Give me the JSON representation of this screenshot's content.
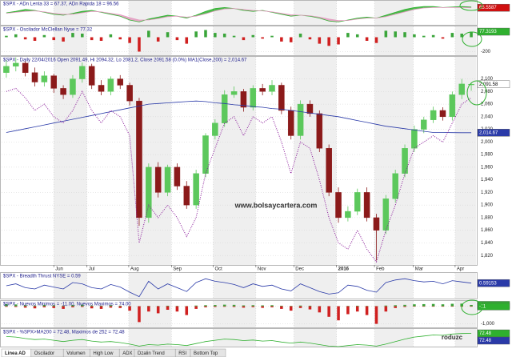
{
  "chart_data": [
    {
      "type": "area",
      "title": "$SPX - ADn Lenta 33 = 67.37, ADn Rapida 18 = 96.56",
      "ylim": [
        30,
        80
      ],
      "series": [
        {
          "color": "#2fb02f",
          "values": [
            55,
            58,
            62,
            60,
            56,
            52,
            50,
            54,
            58,
            60,
            56,
            52,
            48,
            40,
            36,
            42,
            46,
            50,
            48,
            44,
            50,
            58,
            64,
            66,
            64,
            60,
            58,
            60,
            56,
            52,
            48,
            50,
            48,
            44,
            38,
            36,
            40,
            44,
            46,
            44,
            50,
            56,
            62,
            66,
            68,
            68,
            66,
            67,
            68,
            67
          ]
        },
        {
          "color": "#e39bc0",
          "values": [
            54,
            56,
            58,
            59,
            57,
            54,
            52,
            52,
            55,
            58,
            57,
            54,
            51,
            45,
            40,
            40,
            43,
            47,
            48,
            46,
            48,
            53,
            59,
            63,
            64,
            62,
            60,
            59,
            57,
            54,
            51,
            50,
            49,
            46,
            42,
            39,
            39,
            42,
            44,
            44,
            47,
            52,
            57,
            62,
            65,
            66,
            66,
            66,
            66,
            65.5587
          ]
        }
      ],
      "markers": [
        {
          "value": 65.5587,
          "color": "#d01010"
        }
      ]
    },
    {
      "type": "bar",
      "title": "$SPX - Oscilador McClellan Nyse = 77.32",
      "ylim": [
        -250,
        150
      ],
      "yticks": [
        -200
      ],
      "series": [
        {
          "color": "#3aa53a",
          "negative_color": "#d02020",
          "values": [
            20,
            40,
            -30,
            -50,
            30,
            -40,
            -60,
            60,
            50,
            -40,
            -50,
            40,
            -30,
            -80,
            -200,
            90,
            -60,
            70,
            -40,
            -90,
            80,
            100,
            60,
            50,
            20,
            -40,
            30,
            -20,
            20,
            -60,
            -70,
            50,
            -30,
            -90,
            -120,
            -100,
            60,
            40,
            -50,
            -80,
            90,
            80,
            70,
            40,
            20,
            30,
            -20,
            60,
            50,
            77.32
          ]
        }
      ],
      "markers": [
        {
          "value": 77.3193,
          "color": "#2fb02f"
        }
      ]
    },
    {
      "type": "candlestick",
      "title": "$SPX - Daily 22/04/2016 Open 2091.49, Hi 2094.32, Lo 2081.2, Close 2091.58 (0.0%) MA1(Close,200) = 2,014.67",
      "annotation": "www.bolsaycartera.com",
      "xlim": [
        -0.5,
        49.5
      ],
      "ylim": [
        1805,
        2135
      ],
      "xticks": [
        {
          "value": 5,
          "label": "Jun"
        },
        {
          "value": 8.5,
          "label": "Jul"
        },
        {
          "value": 12.9,
          "label": "Aug"
        },
        {
          "value": 17.4,
          "label": "Sep"
        },
        {
          "value": 21.8,
          "label": "Oct"
        },
        {
          "value": 26.3,
          "label": "Nov"
        },
        {
          "value": 30.3,
          "label": "Dec"
        },
        {
          "value": 34.8,
          "label": "2016"
        },
        {
          "value": 38.8,
          "label": "Feb"
        },
        {
          "value": 42.9,
          "label": "Mar"
        },
        {
          "value": 47.3,
          "label": "Apr"
        }
      ],
      "yticks": [
        {
          "value": 1820,
          "label": "1,820"
        },
        {
          "value": 1840,
          "label": "1,840"
        },
        {
          "value": 1860,
          "label": "1,860"
        },
        {
          "value": 1880,
          "label": "1,880"
        },
        {
          "value": 1900,
          "label": "1,900"
        },
        {
          "value": 1920,
          "label": "1,920"
        },
        {
          "value": 1940,
          "label": "1,940"
        },
        {
          "value": 1960,
          "label": "1,960"
        },
        {
          "value": 1980,
          "label": "1,980"
        },
        {
          "value": 2000,
          "label": "2,000"
        },
        {
          "value": 2020,
          "label": "2,020"
        },
        {
          "value": 2040,
          "label": "2,040"
        },
        {
          "value": 2060,
          "label": "2,060"
        },
        {
          "value": 2080,
          "label": "2,080"
        },
        {
          "value": 2100,
          "label": "2,100"
        }
      ],
      "up_color": "#5cc85c",
      "down_color": "#8b1a1a",
      "open": [
        2110,
        2120,
        2125,
        2110,
        2095,
        2105,
        2085,
        2075,
        2100,
        2120,
        2090,
        2080,
        2100,
        2090,
        2065,
        1880,
        1960,
        1920,
        1960,
        1930,
        1900,
        1950,
        2010,
        2030,
        2075,
        2080,
        2055,
        2085,
        2080,
        2090,
        2050,
        2010,
        2060,
        2045,
        1990,
        1920,
        1880,
        1890,
        1920,
        1880,
        1860,
        1910,
        1950,
        1990,
        2020,
        2035,
        2050,
        2040,
        2075,
        2091.49
      ],
      "high": [
        2130,
        2134,
        2128,
        2118,
        2112,
        2108,
        2090,
        2106,
        2126,
        2124,
        2098,
        2104,
        2106,
        2094,
        2070,
        1966,
        1968,
        1964,
        1966,
        1938,
        1956,
        2014,
        2036,
        2082,
        2088,
        2084,
        2090,
        2092,
        2098,
        2094,
        2056,
        2066,
        2066,
        2050,
        1996,
        1928,
        1898,
        1926,
        1928,
        1886,
        1916,
        1956,
        1996,
        2026,
        2040,
        2056,
        2055,
        2080,
        2100,
        2094.32
      ],
      "low": [
        2102,
        2112,
        2104,
        2088,
        2088,
        2078,
        2068,
        2070,
        2094,
        2084,
        2074,
        2074,
        2084,
        2058,
        1867,
        1872,
        1912,
        1914,
        1924,
        1894,
        1894,
        1944,
        2004,
        2024,
        2070,
        2048,
        2050,
        2074,
        2074,
        2044,
        2004,
        2004,
        2040,
        1984,
        1914,
        1872,
        1874,
        1884,
        1874,
        1812,
        1854,
        1904,
        1944,
        1984,
        2014,
        2030,
        2034,
        2034,
        2068,
        2081.2
      ],
      "close": [
        2120,
        2125,
        2110,
        2095,
        2105,
        2085,
        2075,
        2100,
        2120,
        2090,
        2080,
        2100,
        2090,
        2065,
        1880,
        1960,
        1920,
        1960,
        1930,
        1900,
        1950,
        2010,
        2030,
        2075,
        2080,
        2055,
        2085,
        2080,
        2090,
        2050,
        2010,
        2060,
        2045,
        1990,
        1920,
        1880,
        1890,
        1920,
        1880,
        1860,
        1910,
        1950,
        1990,
        2020,
        2035,
        2050,
        2040,
        2075,
        2092,
        2091.58
      ],
      "series": [
        {
          "color": "#2a3aa8",
          "style": "solid",
          "values": [
            2015,
            2018,
            2021,
            2024,
            2027,
            2030,
            2033,
            2036,
            2039,
            2042,
            2045,
            2048,
            2051,
            2054,
            2057,
            2060,
            2061,
            2062,
            2063,
            2064,
            2065,
            2064,
            2062,
            2061,
            2059,
            2058,
            2056,
            2055,
            2053,
            2052,
            2050,
            2048,
            2046,
            2044,
            2042,
            2040,
            2037,
            2034,
            2031,
            2028,
            2025,
            2023,
            2021,
            2019,
            2017,
            2015,
            2015,
            2014.8,
            2014.7,
            2014.67
          ]
        },
        {
          "color": "#8a1a9a",
          "style": "dotted",
          "values": [
            2080,
            2085,
            2070,
            2050,
            2060,
            2040,
            2030,
            2050,
            2080,
            2050,
            2030,
            2050,
            2040,
            2010,
            1840,
            1900,
            1880,
            1900,
            1880,
            1850,
            1880,
            1950,
            1990,
            2030,
            2040,
            2010,
            2040,
            2030,
            2040,
            2000,
            1950,
            2000,
            1990,
            1940,
            1880,
            1840,
            1830,
            1860,
            1830,
            1810,
            1860,
            1900,
            1950,
            1990,
            2000,
            2010,
            2000,
            2030,
            2060,
            2070
          ]
        }
      ],
      "markers": [
        {
          "value": 2091.58,
          "label": "2,091.58",
          "color": "#ffffff"
        },
        {
          "value": 2014.67,
          "label": "2,014.67",
          "color": "#2a3aa8"
        }
      ]
    },
    {
      "type": "line",
      "title": "$SPX - Breadth Thrust NYSE = 0.59",
      "ylim": [
        0.35,
        0.75
      ],
      "series": [
        {
          "color": "#2a3aa8",
          "values": [
            0.55,
            0.58,
            0.52,
            0.5,
            0.56,
            0.53,
            0.5,
            0.6,
            0.58,
            0.52,
            0.5,
            0.57,
            0.53,
            0.45,
            0.38,
            0.62,
            0.5,
            0.58,
            0.52,
            0.46,
            0.6,
            0.66,
            0.62,
            0.6,
            0.57,
            0.52,
            0.58,
            0.54,
            0.56,
            0.5,
            0.47,
            0.58,
            0.52,
            0.46,
            0.42,
            0.44,
            0.56,
            0.54,
            0.48,
            0.45,
            0.6,
            0.64,
            0.66,
            0.63,
            0.61,
            0.62,
            0.58,
            0.63,
            0.61,
            0.59153
          ]
        }
      ],
      "markers": [
        {
          "value": 0.59153,
          "color": "#2a3aa8"
        }
      ]
    },
    {
      "type": "bar",
      "title": "$SPX - Nuevos Minimos = -11.00, Nuevos Maximos = 74.00",
      "ylim": [
        -1200,
        300
      ],
      "yticks": [
        0,
        {
          "value": -1000,
          "label": "-1,000"
        }
      ],
      "series": [
        {
          "color": "#3aa53a",
          "values": [
            120,
            100,
            60,
            40,
            80,
            50,
            30,
            70,
            90,
            40,
            30,
            60,
            30,
            10,
            5,
            20,
            15,
            30,
            20,
            10,
            40,
            60,
            70,
            90,
            80,
            50,
            60,
            50,
            60,
            30,
            20,
            40,
            30,
            10,
            5,
            5,
            20,
            30,
            20,
            10,
            40,
            60,
            80,
            110,
            120,
            130,
            110,
            140,
            150,
            74
          ]
        },
        {
          "color": "#d02020",
          "values": [
            -30,
            -40,
            -80,
            -120,
            -60,
            -100,
            -150,
            -60,
            -40,
            -120,
            -150,
            -80,
            -100,
            -250,
            -900,
            -300,
            -400,
            -200,
            -300,
            -500,
            -150,
            -60,
            -40,
            -30,
            -40,
            -80,
            -50,
            -90,
            -60,
            -150,
            -250,
            -100,
            -180,
            -350,
            -600,
            -800,
            -450,
            -300,
            -500,
            -1000,
            -300,
            -100,
            -40,
            -20,
            -15,
            -10,
            -20,
            -10,
            -15,
            -11
          ]
        }
      ],
      "markers": [
        {
          "value": 74,
          "color": "#2fb02f"
        },
        {
          "value": -11,
          "color": "#2fb02f"
        }
      ]
    },
    {
      "type": "line",
      "title": "$SPX - %SPX>MA200 = 72.48, Maximos de 252 = 72.48",
      "annotation": "roduzc",
      "ylim": [
        20,
        90
      ],
      "series": [
        {
          "color": "#2fb02f",
          "values": [
            60,
            58,
            52,
            48,
            50,
            45,
            40,
            45,
            48,
            42,
            38,
            40,
            36,
            30,
            22,
            28,
            26,
            30,
            28,
            24,
            32,
            40,
            45,
            50,
            48,
            44,
            46,
            42,
            44,
            38,
            34,
            38,
            34,
            28,
            22,
            20,
            24,
            28,
            26,
            22,
            30,
            40,
            50,
            58,
            62,
            66,
            65,
            70,
            72,
            72.48
          ]
        }
      ],
      "markers": [
        {
          "value": 72.48,
          "color": "#2fb02f"
        },
        {
          "value": 72.48,
          "color": "#2a3aa8"
        }
      ]
    }
  ],
  "tabs": [
    "Linea AD",
    "Oscilador",
    "Volumen",
    "High Low",
    "ADX",
    "Dzalin Trend",
    "RSI",
    "Bottom Top"
  ]
}
